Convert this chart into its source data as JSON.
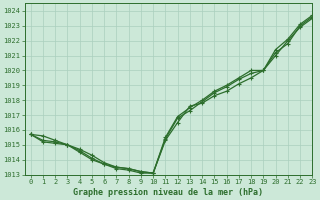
{
  "background_color": "#cce8d8",
  "grid_color": "#aacfbe",
  "line_color": "#2d6e2d",
  "title": "Graphe pression niveau de la mer (hPa)",
  "xlim": [
    -0.5,
    23
  ],
  "ylim": [
    1013,
    1024.5
  ],
  "yticks": [
    1013,
    1014,
    1015,
    1016,
    1017,
    1018,
    1019,
    1020,
    1021,
    1022,
    1023,
    1024
  ],
  "xticks": [
    0,
    1,
    2,
    3,
    4,
    5,
    6,
    7,
    8,
    9,
    10,
    11,
    12,
    13,
    14,
    15,
    16,
    17,
    18,
    19,
    20,
    21,
    22,
    23
  ],
  "series": [
    [
      1015.7,
      1015.6,
      1015.3,
      1015.0,
      1014.7,
      1014.3,
      1013.8,
      1013.5,
      1013.4,
      1013.2,
      1013.1,
      1015.3,
      1016.5,
      1017.6,
      1017.8,
      1018.3,
      1018.6,
      1019.1,
      1019.5,
      1020.0,
      1021.0,
      1022.0,
      1022.9,
      1023.5
    ],
    [
      1015.7,
      1015.3,
      1015.2,
      1015.0,
      1014.6,
      1014.1,
      1013.7,
      1013.5,
      1013.4,
      1013.2,
      1013.1,
      1015.4,
      1016.8,
      1017.3,
      1017.9,
      1018.5,
      1018.9,
      1019.4,
      1019.8,
      1020.0,
      1021.2,
      1021.8,
      1023.0,
      1023.6
    ],
    [
      1015.7,
      1015.2,
      1015.1,
      1015.0,
      1014.5,
      1014.0,
      1013.7,
      1013.4,
      1013.3,
      1013.1,
      1013.1,
      1015.5,
      1016.9,
      1017.5,
      1018.0,
      1018.6,
      1019.0,
      1019.5,
      1020.0,
      1020.0,
      1021.4,
      1022.1,
      1023.1,
      1023.7
    ]
  ],
  "marker": "+",
  "markersize": 3.5,
  "linewidth": 0.9,
  "tick_fontsize": 5,
  "xlabel_fontsize": 6
}
